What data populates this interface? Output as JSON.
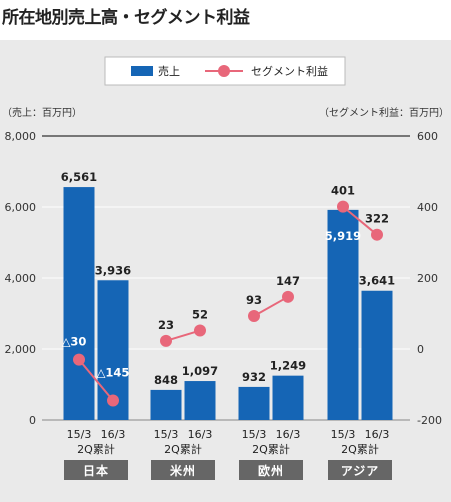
{
  "title": "所在地別売上高・セグメント利益",
  "chart_data": {
    "type": "bar",
    "units": {
      "left": "（売上：百万円）",
      "right": "（セグメント利益：百万円）"
    },
    "legend": [
      {
        "name": "売上",
        "marker": "bar",
        "color": "#1565b5"
      },
      {
        "name": "セグメント利益",
        "marker": "line",
        "color": "#e8677a"
      }
    ],
    "legend_position": "top-center",
    "left_axis": {
      "ylim": [
        0,
        8000
      ],
      "ticks": [
        "0",
        "2,000",
        "4,000",
        "6,000",
        "8,000"
      ]
    },
    "right_axis": {
      "ylim": [
        -200,
        600
      ],
      "ticks": [
        "-200",
        "0",
        "200",
        "400",
        "600"
      ]
    },
    "period_labels": [
      "15/3",
      "16/3"
    ],
    "period_sublabel": "2Q累計",
    "groups": [
      {
        "region": "日本",
        "sales": [
          6561,
          3936
        ],
        "sales_labels": [
          "6,561",
          "3,936"
        ],
        "profit": [
          -30,
          -145
        ],
        "profit_labels": [
          "△30",
          "△145"
        ]
      },
      {
        "region": "米州",
        "sales": [
          848,
          1097
        ],
        "sales_labels": [
          "848",
          "1,097"
        ],
        "profit": [
          23,
          52
        ],
        "profit_labels": [
          "23",
          "52"
        ]
      },
      {
        "region": "欧州",
        "sales": [
          932,
          1249
        ],
        "sales_labels": [
          "932",
          "1,249"
        ],
        "profit": [
          93,
          147
        ],
        "profit_labels": [
          "93",
          "147"
        ]
      },
      {
        "region": "アジア",
        "sales": [
          5919,
          3641
        ],
        "sales_labels": [
          "5,919",
          "3,641"
        ],
        "profit": [
          401,
          322
        ],
        "profit_labels": [
          "401",
          "322"
        ]
      }
    ],
    "colors": {
      "bar": "#1565b5",
      "line": "#e8677a",
      "region_box": "#666666"
    },
    "grid": true
  }
}
